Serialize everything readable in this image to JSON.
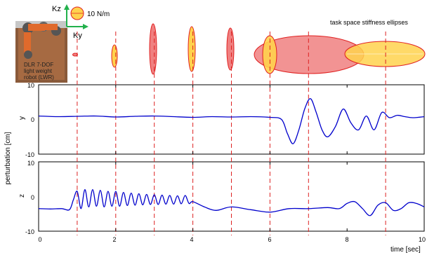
{
  "header": {
    "robot_label_lines": [
      "DLR 7-DOF",
      "light weight",
      "robot (LWR)"
    ],
    "axis_z": "Kz",
    "axis_y": "Ky",
    "scale_label": "10 N/m",
    "ellipses_title": "task space stiffness ellipses"
  },
  "colors": {
    "series": "#0000cc",
    "dashed_marker": "#dd2222",
    "ellipse_red_fill": "#f08080",
    "ellipse_yellow_fill": "#ffd24d",
    "ellipse_edge": "#e02020",
    "arrow": "#22b14c"
  },
  "chart_data": {
    "type": "line",
    "xlabel": "time [sec]",
    "ylabel_shared": "perturbation [cm]",
    "x_range": [
      0,
      10
    ],
    "x_ticks": [
      "0",
      "2",
      "4",
      "6",
      "8",
      "10"
    ],
    "dashed_markers_at": [
      1,
      2,
      3,
      4,
      5,
      6,
      7,
      9
    ],
    "panels": [
      {
        "name": "y",
        "ylim": [
          -10,
          10
        ],
        "y_ticks": [
          "10",
          "0",
          "-10"
        ],
        "series": [
          {
            "x": [
              0,
              0.5,
              1,
              1.5,
              2,
              2.5,
              3,
              3.5,
              4,
              4.5,
              5,
              5.5,
              6,
              6.3,
              6.45,
              6.6,
              6.75,
              6.9,
              7.05,
              7.2,
              7.35,
              7.5,
              7.7,
              7.9,
              8.1,
              8.3,
              8.5,
              8.7,
              8.9,
              9.1,
              9.3,
              9.5,
              9.7,
              10
            ],
            "y": [
              1,
              0.8,
              0.9,
              1,
              0.7,
              0.9,
              1,
              0.8,
              0.6,
              0.8,
              0.7,
              0.8,
              0.6,
              0,
              -4,
              -7,
              -3,
              3,
              6,
              2,
              -3,
              -5,
              -2,
              3,
              -1,
              -3,
              1,
              -3,
              2,
              0.5,
              1.2,
              0.8,
              0.5,
              0.8
            ]
          }
        ]
      },
      {
        "name": "z",
        "ylim": [
          -10,
          10
        ],
        "y_ticks": [
          "10",
          "0",
          "-10"
        ],
        "series": [
          {
            "x": [
              0,
              0.3,
              0.6,
              0.8,
              0.9,
              1,
              1.1,
              1.2,
              1.3,
              1.4,
              1.5,
              1.6,
              1.7,
              1.8,
              1.9,
              2,
              2.1,
              2.2,
              2.3,
              2.4,
              2.5,
              2.6,
              2.7,
              2.8,
              2.9,
              3,
              3.1,
              3.2,
              3.3,
              3.4,
              3.5,
              3.6,
              3.7,
              3.8,
              3.9,
              4,
              4.3,
              4.6,
              5,
              5.5,
              6,
              6.5,
              7,
              7.5,
              7.8,
              8,
              8.2,
              8.4,
              8.6,
              8.8,
              9,
              9.2,
              9.4,
              9.6,
              9.8,
              10
            ],
            "y": [
              -3.5,
              -3.6,
              -3.5,
              -3.8,
              -1,
              1.5,
              -3.5,
              2,
              -3,
              2,
              -2.8,
              1.8,
              -3,
              1.5,
              -2.8,
              1.5,
              -2.8,
              1.2,
              -2.6,
              1,
              -2.5,
              0.8,
              -2.4,
              0.6,
              -2.3,
              0.5,
              -2.3,
              0.4,
              -2.2,
              0.3,
              -2.2,
              0.2,
              -2.1,
              0.3,
              -2,
              -1.5,
              -3,
              -4,
              -3,
              -3.8,
              -4.5,
              -3.5,
              -3.5,
              -3.2,
              -3.5,
              -2,
              -1.5,
              -3.5,
              -5.5,
              -2.5,
              -1.8,
              -4,
              -3.5,
              -1.8,
              -2,
              -3
            ]
          }
        ]
      }
    ]
  }
}
